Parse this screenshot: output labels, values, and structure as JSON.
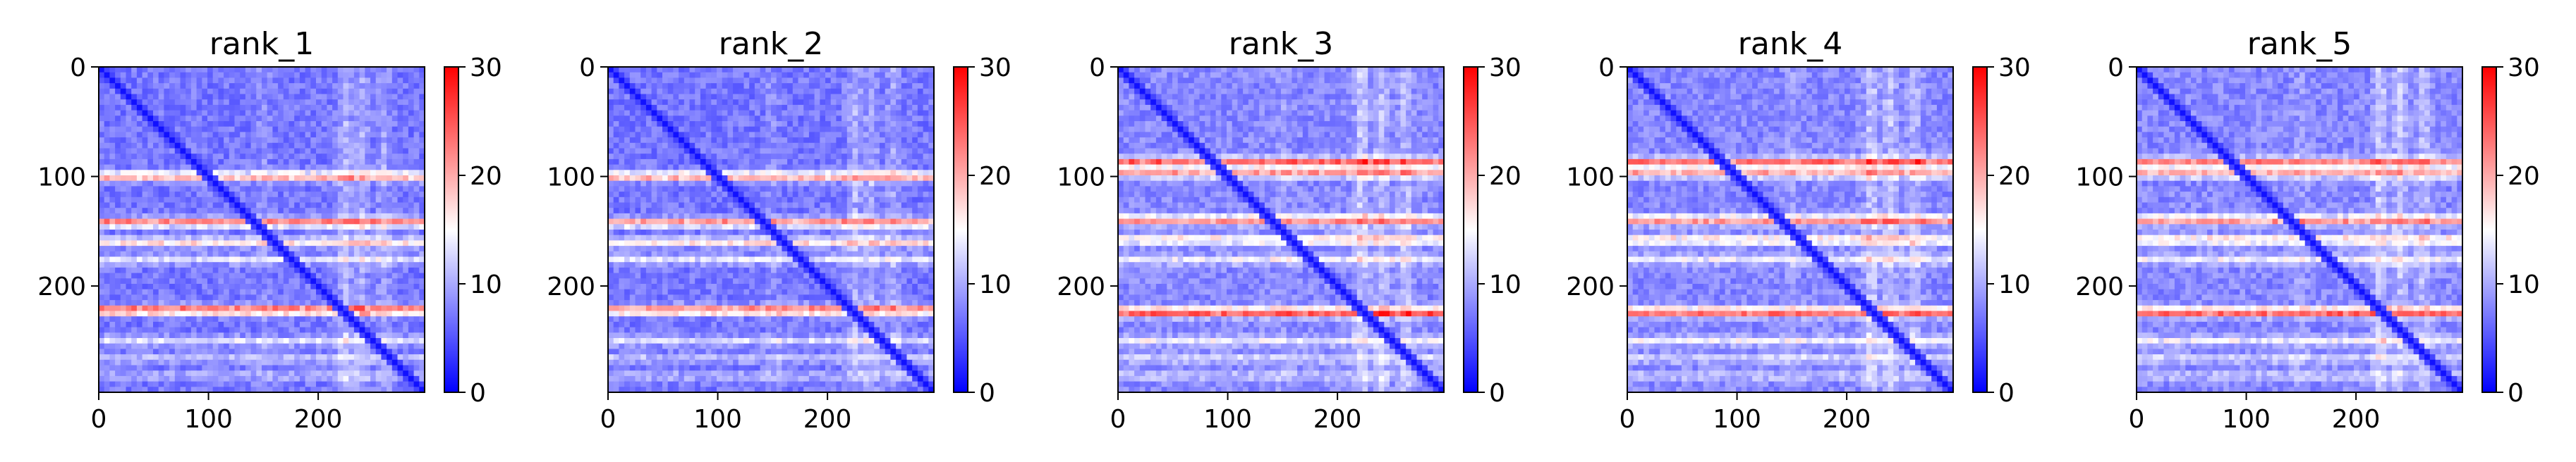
{
  "chart_data": [
    {
      "type": "heatmap",
      "title": "rank_1",
      "xlim": [
        0,
        297
      ],
      "ylim": [
        297,
        0
      ],
      "xticks": [
        "0",
        "100",
        "200"
      ],
      "yticks": [
        "0",
        "100",
        "200"
      ],
      "colorbar": {
        "cmap": "bwr",
        "min": 0,
        "max": 30,
        "ticks": [
          "0",
          "10",
          "20",
          "30"
        ]
      },
      "baseline": 7,
      "bands": [
        {
          "y": 100,
          "value": 22
        },
        {
          "y": 142,
          "value": 24
        },
        {
          "y": 160,
          "value": 18
        },
        {
          "y": 176,
          "value": 14
        },
        {
          "y": 222,
          "value": 27
        },
        {
          "y": 250,
          "value": 14
        },
        {
          "y": 266,
          "value": 12
        },
        {
          "y": 282,
          "value": 11
        }
      ],
      "cols": [
        {
          "x": 225,
          "value": 16
        },
        {
          "x": 240,
          "value": 15
        },
        {
          "x": 260,
          "value": 14
        },
        {
          "x": 150,
          "value": 11
        }
      ]
    },
    {
      "type": "heatmap",
      "title": "rank_2",
      "xlim": [
        0,
        297
      ],
      "ylim": [
        297,
        0
      ],
      "xticks": [
        "0",
        "100",
        "200"
      ],
      "yticks": [
        "0",
        "100",
        "200"
      ],
      "colorbar": {
        "cmap": "bwr",
        "min": 0,
        "max": 30,
        "ticks": [
          "0",
          "10",
          "20",
          "30"
        ]
      },
      "baseline": 7,
      "bands": [
        {
          "y": 100,
          "value": 22
        },
        {
          "y": 142,
          "value": 23
        },
        {
          "y": 160,
          "value": 18
        },
        {
          "y": 176,
          "value": 14
        },
        {
          "y": 222,
          "value": 26
        },
        {
          "y": 250,
          "value": 14
        },
        {
          "y": 266,
          "value": 12
        },
        {
          "y": 282,
          "value": 11
        }
      ],
      "cols": [
        {
          "x": 225,
          "value": 16
        },
        {
          "x": 240,
          "value": 15
        },
        {
          "x": 260,
          "value": 14
        },
        {
          "x": 150,
          "value": 11
        }
      ]
    },
    {
      "type": "heatmap",
      "title": "rank_3",
      "xlim": [
        0,
        297
      ],
      "ylim": [
        297,
        0
      ],
      "xticks": [
        "0",
        "100",
        "200"
      ],
      "yticks": [
        "0",
        "100",
        "200"
      ],
      "colorbar": {
        "cmap": "bwr",
        "min": 0,
        "max": 30,
        "ticks": [
          "0",
          "10",
          "20",
          "30"
        ]
      },
      "baseline": 8,
      "bands": [
        {
          "y": 87,
          "value": 26
        },
        {
          "y": 97,
          "value": 22
        },
        {
          "y": 140,
          "value": 24
        },
        {
          "y": 158,
          "value": 19
        },
        {
          "y": 176,
          "value": 15
        },
        {
          "y": 224,
          "value": 28
        },
        {
          "y": 250,
          "value": 15
        },
        {
          "y": 266,
          "value": 13
        },
        {
          "y": 282,
          "value": 12
        }
      ],
      "cols": [
        {
          "x": 222,
          "value": 18
        },
        {
          "x": 240,
          "value": 17
        },
        {
          "x": 262,
          "value": 16
        },
        {
          "x": 150,
          "value": 11
        }
      ]
    },
    {
      "type": "heatmap",
      "title": "rank_4",
      "xlim": [
        0,
        297
      ],
      "ylim": [
        297,
        0
      ],
      "xticks": [
        "0",
        "100",
        "200"
      ],
      "yticks": [
        "0",
        "100",
        "200"
      ],
      "colorbar": {
        "cmap": "bwr",
        "min": 0,
        "max": 30,
        "ticks": [
          "0",
          "10",
          "20",
          "30"
        ]
      },
      "baseline": 8,
      "bands": [
        {
          "y": 87,
          "value": 25
        },
        {
          "y": 97,
          "value": 21
        },
        {
          "y": 140,
          "value": 24
        },
        {
          "y": 158,
          "value": 19
        },
        {
          "y": 176,
          "value": 15
        },
        {
          "y": 224,
          "value": 27
        },
        {
          "y": 250,
          "value": 15
        },
        {
          "y": 266,
          "value": 13
        },
        {
          "y": 282,
          "value": 12
        }
      ],
      "cols": [
        {
          "x": 222,
          "value": 18
        },
        {
          "x": 240,
          "value": 17
        },
        {
          "x": 262,
          "value": 16
        },
        {
          "x": 150,
          "value": 11
        }
      ]
    },
    {
      "type": "heatmap",
      "title": "rank_5",
      "xlim": [
        0,
        297
      ],
      "ylim": [
        297,
        0
      ],
      "xticks": [
        "0",
        "100",
        "200"
      ],
      "yticks": [
        "0",
        "100",
        "200"
      ],
      "colorbar": {
        "cmap": "bwr",
        "min": 0,
        "max": 30,
        "ticks": [
          "0",
          "10",
          "20",
          "30"
        ]
      },
      "baseline": 8,
      "bands": [
        {
          "y": 87,
          "value": 24
        },
        {
          "y": 97,
          "value": 21
        },
        {
          "y": 140,
          "value": 23
        },
        {
          "y": 158,
          "value": 19
        },
        {
          "y": 176,
          "value": 15
        },
        {
          "y": 224,
          "value": 27
        },
        {
          "y": 250,
          "value": 15
        },
        {
          "y": 266,
          "value": 13
        },
        {
          "y": 282,
          "value": 12
        }
      ],
      "cols": [
        {
          "x": 222,
          "value": 18
        },
        {
          "x": 240,
          "value": 17
        },
        {
          "x": 262,
          "value": 16
        },
        {
          "x": 150,
          "value": 11
        }
      ]
    }
  ]
}
